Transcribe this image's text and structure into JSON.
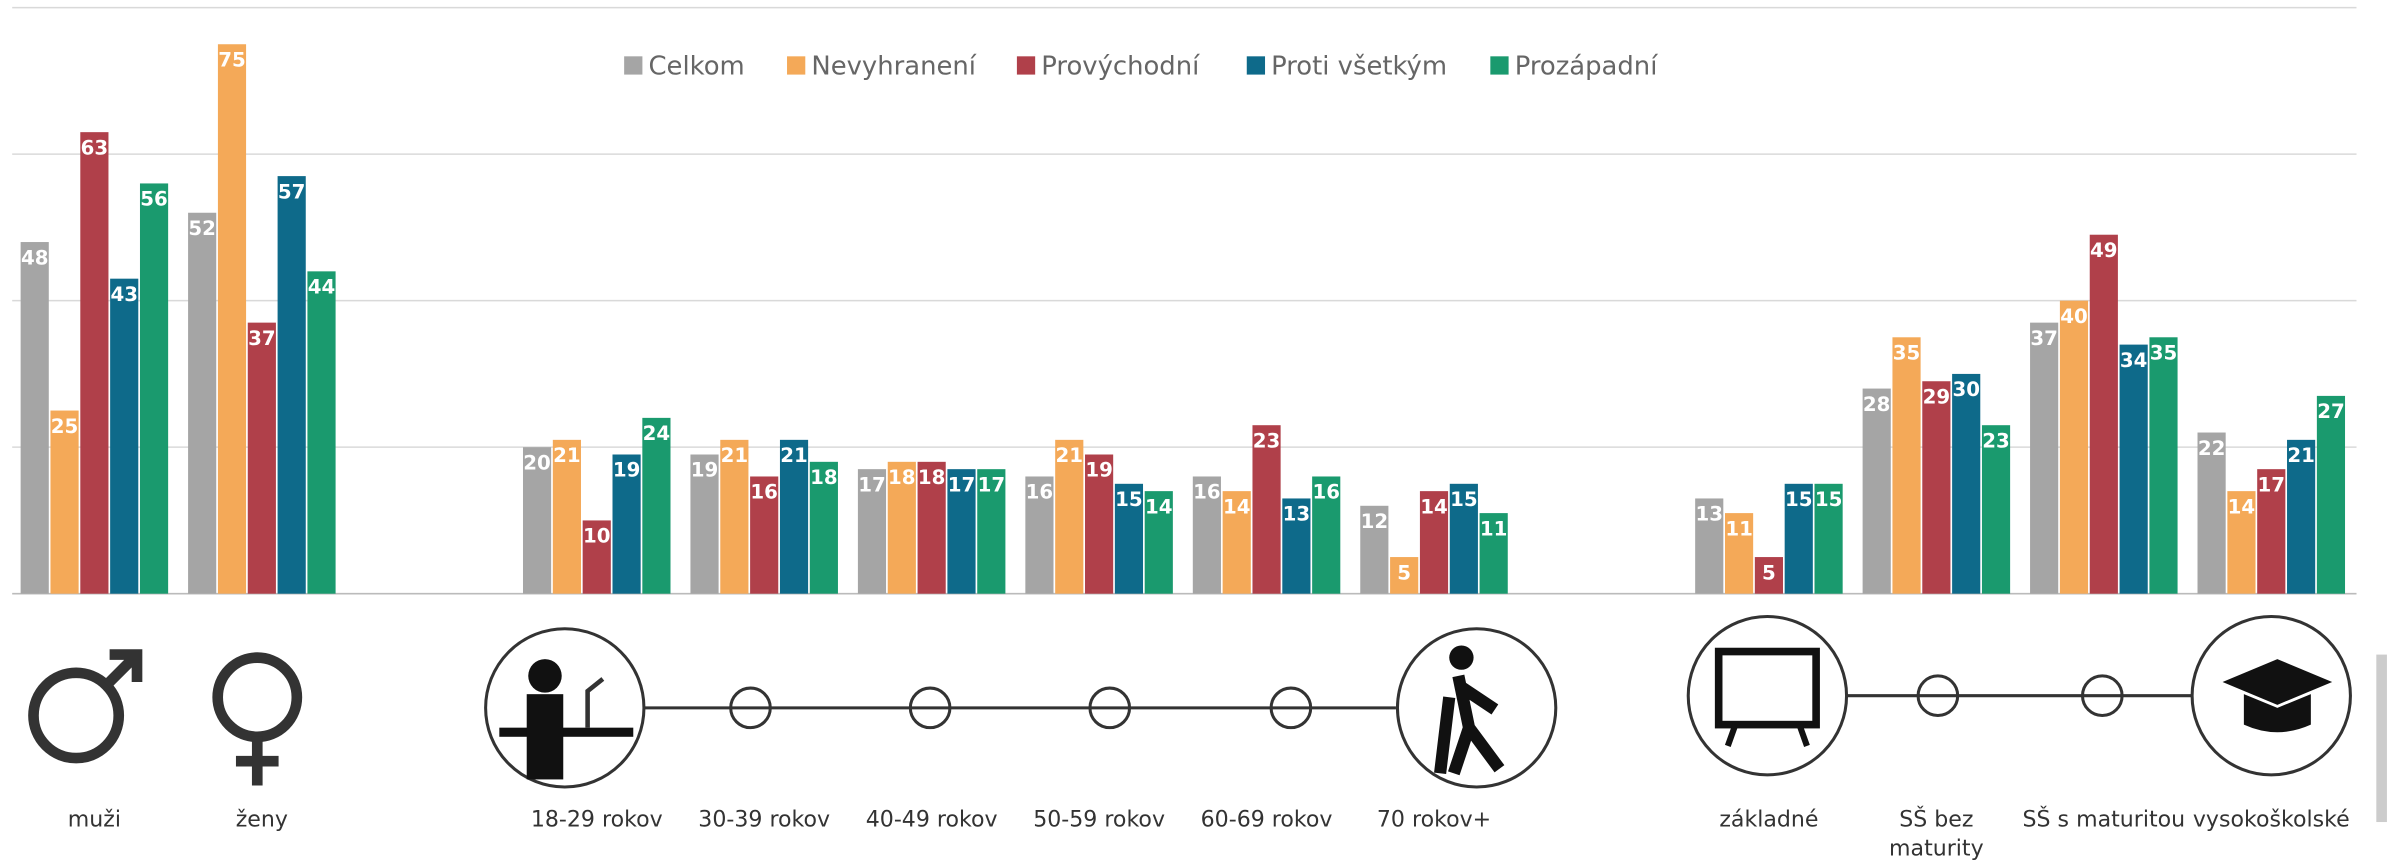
{
  "chart_data": {
    "type": "bar",
    "categories": [
      "muži",
      "ženy",
      "18-29 rokov",
      "30-39 rokov",
      "40-49 rokov",
      "50-59 rokov",
      "60-69 rokov",
      "70 rokov+",
      "základné",
      "SŠ bez maturity",
      "SŠ s maturitou",
      "vysokoškolské"
    ],
    "series": [
      {
        "name": "Celkom",
        "color": "#a5a5a5",
        "values": [
          48,
          52,
          20,
          19,
          17,
          16,
          16,
          12,
          13,
          28,
          37,
          22
        ]
      },
      {
        "name": "Nevyhranení",
        "color": "#f4a958",
        "values": [
          25,
          75,
          21,
          21,
          18,
          21,
          14,
          5,
          11,
          35,
          40,
          14
        ]
      },
      {
        "name": "Provýchodní",
        "color": "#b0404a",
        "values": [
          63,
          37,
          10,
          16,
          18,
          19,
          23,
          14,
          5,
          29,
          49,
          17
        ]
      },
      {
        "name": "Proti všetkým",
        "color": "#0e6a8a",
        "values": [
          43,
          57,
          19,
          21,
          17,
          15,
          13,
          15,
          15,
          30,
          34,
          21
        ]
      },
      {
        "name": "Prozápadní",
        "color": "#1a9a6e",
        "values": [
          56,
          44,
          24,
          18,
          17,
          14,
          16,
          11,
          15,
          23,
          35,
          27
        ]
      }
    ],
    "ylim": [
      0,
      80
    ],
    "yticks": [
      0,
      20,
      40,
      60,
      80
    ],
    "grid": true,
    "legend": "top"
  }
}
